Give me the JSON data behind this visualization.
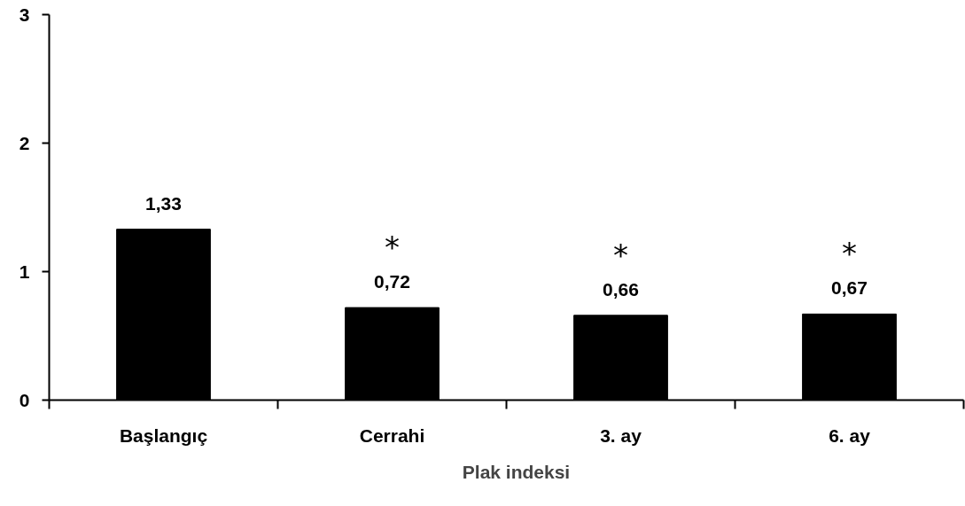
{
  "chart_data": {
    "type": "bar",
    "categories": [
      "Başlangıç",
      "Cerrahi",
      "3. ay",
      "6. ay"
    ],
    "series": [
      {
        "name": "Plak indeksi",
        "color": "#000000",
        "values": [
          1.33,
          0.72,
          0.66,
          0.67
        ],
        "value_labels": [
          "1,33",
          "0,72",
          "0,66",
          "0,67"
        ]
      }
    ],
    "ylim": [
      0,
      3
    ],
    "yticks": [
      0,
      1,
      2,
      3
    ],
    "grid": false,
    "legend": "bottom",
    "annotations": [
      "*",
      "*",
      "*"
    ]
  }
}
